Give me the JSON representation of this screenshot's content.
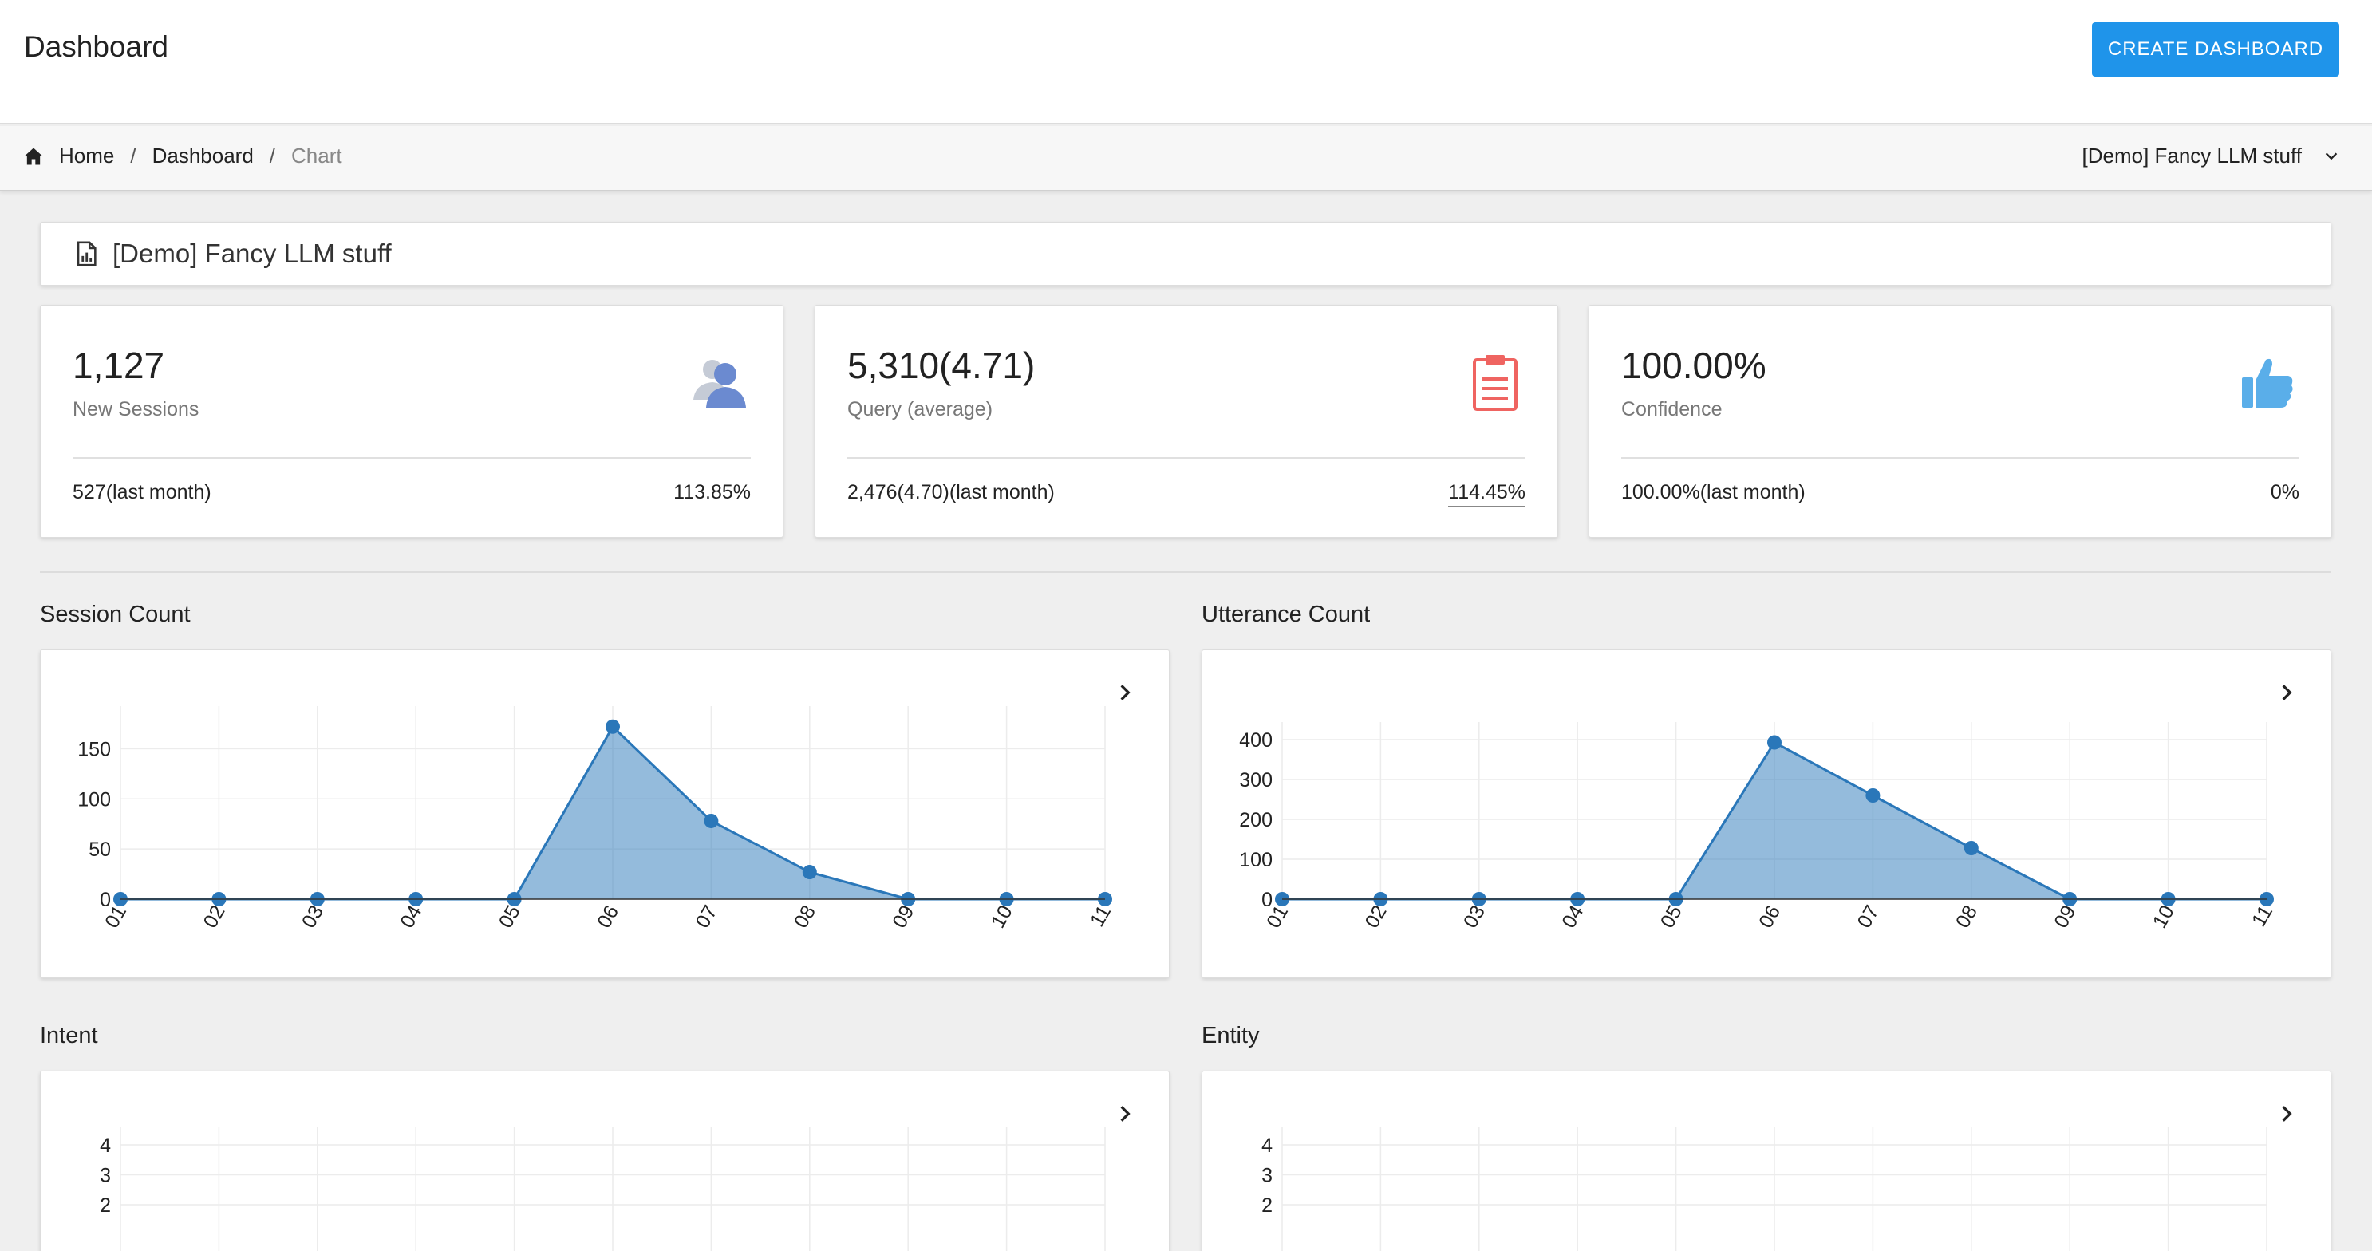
{
  "header": {
    "title": "Dashboard",
    "create_label": "CREATE DASHBOARD"
  },
  "breadcrumb": {
    "items": [
      {
        "label": "Home",
        "icon": "home-icon"
      },
      {
        "label": "Dashboard"
      },
      {
        "label": "Chart"
      }
    ],
    "separator": "/",
    "selector": "[Demo] Fancy LLM stuff"
  },
  "dashboard": {
    "name": "[Demo] Fancy LLM stuff",
    "icon": "document-chart-icon"
  },
  "stats": [
    {
      "value": "1,127",
      "label": "New Sessions",
      "previous": "527(last month)",
      "change": "113.85%",
      "icon": "users-icon",
      "color": "#6b8ad0"
    },
    {
      "value": "5,310(4.71)",
      "label": "Query (average)",
      "previous": "2,476(4.70)(last month)",
      "change": "114.45%",
      "icon": "clipboard-icon",
      "color": "#ef6461"
    },
    {
      "value": "100.00%",
      "label": "Confidence",
      "previous": "100.00%(last month)",
      "change": "0%",
      "icon": "thumbs-up-icon",
      "color": "#5aaee9"
    }
  ],
  "chart_data": [
    {
      "type": "area",
      "title": "Session Count",
      "categories": [
        "01",
        "02",
        "03",
        "04",
        "05",
        "06",
        "07",
        "08",
        "09",
        "10",
        "11"
      ],
      "values": [
        0,
        0,
        0,
        0,
        0,
        172,
        78,
        27,
        0,
        0,
        0
      ],
      "yticks": [
        0,
        50,
        100,
        150
      ],
      "ylim": [
        0,
        175
      ],
      "grid": true,
      "color": "#2a77b9"
    },
    {
      "type": "area",
      "title": "Utterance Count",
      "categories": [
        "01",
        "02",
        "03",
        "04",
        "05",
        "06",
        "07",
        "08",
        "09",
        "10",
        "11"
      ],
      "values": [
        0,
        0,
        0,
        0,
        0,
        393,
        260,
        128,
        0,
        0,
        0
      ],
      "yticks": [
        0,
        100,
        200,
        300,
        400
      ],
      "ylim": [
        0,
        400
      ],
      "grid": true,
      "color": "#2a77b9"
    },
    {
      "type": "bar",
      "title": "Intent",
      "categories": [],
      "values": [],
      "yticks": [
        2,
        3,
        4
      ],
      "ylim": [
        0,
        4
      ],
      "grid": true
    },
    {
      "type": "bar",
      "title": "Entity",
      "categories": [],
      "values": [],
      "yticks": [
        2,
        3,
        4
      ],
      "ylim": [
        0,
        4
      ],
      "grid": true
    }
  ]
}
